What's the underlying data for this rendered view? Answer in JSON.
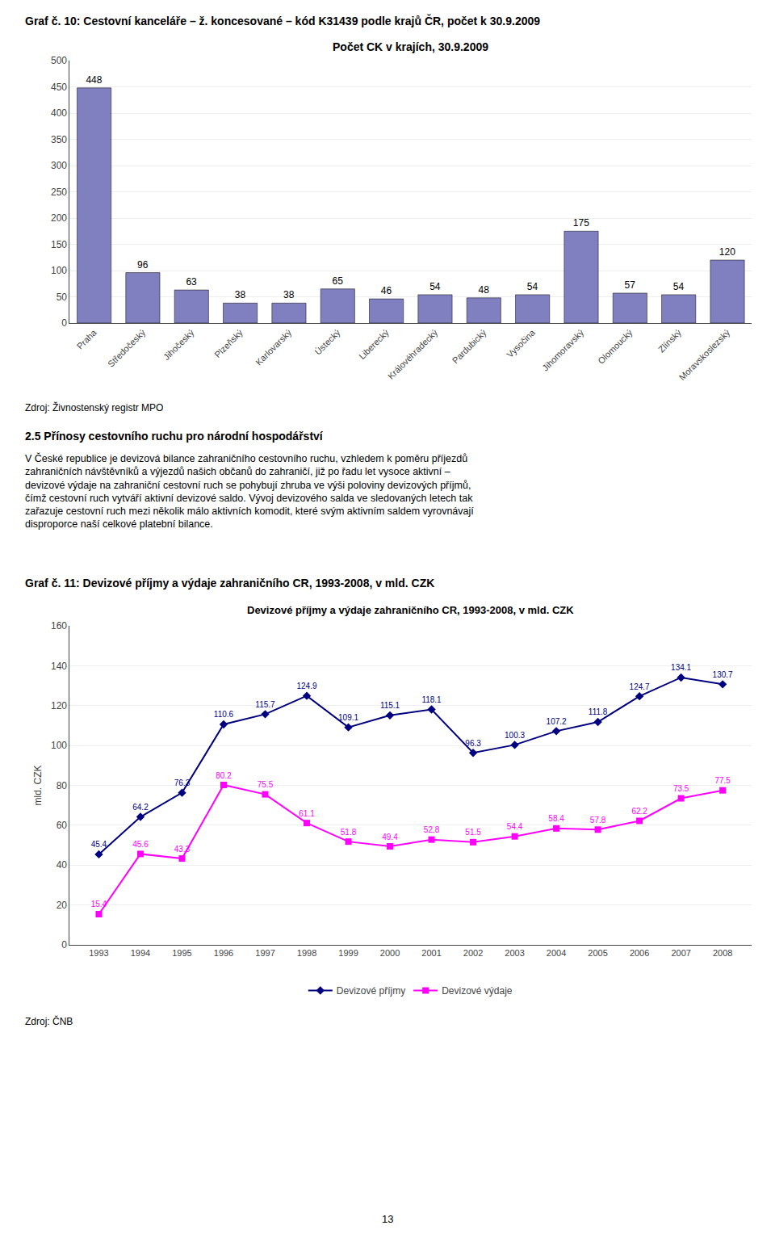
{
  "title": "Graf č. 10: Cestovní kanceláře – ž. koncesované – kód K31439 podle krajů ČR, počet k 30.9.2009",
  "section_title": "2.5 Přínosy cestovního ruchu pro národní hospodářství",
  "section_text": [
    "V České republice je devizová bilance zahraničního cestovního ruchu, vzhledem k poměru příjezdů",
    "zahraničních návštěvníků a výjezdů našich občanů do zahraničí, již po řadu let vysoce aktivní –",
    "devizové výdaje na zahraniční cestovní ruch se pohybují zhruba ve výši poloviny devizových příjmů,",
    "čímž cestovní ruch vytváří aktivní devizové saldo. Vývoj devizového salda ve sledovaných letech tak",
    "zařazuje cestovní ruch mezi několik málo aktivních komodit, které svým aktivním saldem vyrovnávají",
    "disproporce naší celkové platební bilance."
  ],
  "page_number": "13",
  "chart_data": [
    {
      "type": "bar",
      "title": "Počet CK v krajích, 30.9.2009",
      "categories": [
        "Praha",
        "Středočeský",
        "Jihočeský",
        "Plzeňský",
        "Karlovarský",
        "Ústecký",
        "Liberecký",
        "Královéhradecký",
        "Pardubický",
        "Vysočina",
        "Jihomoravský",
        "Olomoucký",
        "Zlínský",
        "Moravskoslezský"
      ],
      "values": [
        448,
        96,
        63,
        38,
        38,
        65,
        46,
        54,
        48,
        54,
        175,
        57,
        54,
        120
      ],
      "color": "#8080C0",
      "ylim": [
        0,
        500
      ],
      "yticks": [
        0,
        50,
        100,
        150,
        200,
        250,
        300,
        350,
        400,
        450,
        500
      ],
      "grid": "y",
      "data_labels": true,
      "source": "Zdroj: Živnostenský registr MPO"
    },
    {
      "type": "line",
      "heading": "Graf č. 11: Devizové příjmy a výdaje zahraničního CR, 1993-2008, v mld. CZK",
      "title": "Devizové příjmy a výdaje zahraničního CR, 1993-2008, v mld. CZK",
      "x": [
        1993,
        1994,
        1995,
        1996,
        1997,
        1998,
        1999,
        2000,
        2001,
        2002,
        2003,
        2004,
        2005,
        2006,
        2007,
        2008
      ],
      "series": [
        {
          "name": "Devizové příjmy",
          "color": "#000080",
          "marker": "diamond",
          "line_style": "solid",
          "values": [
            45.4,
            64.2,
            76.3,
            110.6,
            115.7,
            124.9,
            109.1,
            115.1,
            118.1,
            96.3,
            100.3,
            107.2,
            111.8,
            124.7,
            134.1,
            130.7
          ]
        },
        {
          "name": "Devizové výdaje",
          "color": "#FF00FF",
          "marker": "square",
          "line_style": "solid",
          "values": [
            15.4,
            45.6,
            43.3,
            80.2,
            75.5,
            61.1,
            51.8,
            49.4,
            52.8,
            51.5,
            54.4,
            58.4,
            57.8,
            62.2,
            73.5,
            77.5
          ]
        }
      ],
      "xlim": [
        1992.3,
        2008.7
      ],
      "xticks": [
        1993,
        1994,
        1995,
        1996,
        1997,
        1998,
        1999,
        2000,
        2001,
        2002,
        2003,
        2004,
        2005,
        2006,
        2007,
        2008
      ],
      "ylim": [
        0,
        160
      ],
      "yticks": [
        0,
        20,
        40,
        60,
        80,
        100,
        120,
        140,
        160
      ],
      "ylabel": "mld. CZK",
      "grid": "y",
      "legend": "bottom",
      "data_labels": true,
      "source": "Zdroj: ČNB"
    }
  ]
}
